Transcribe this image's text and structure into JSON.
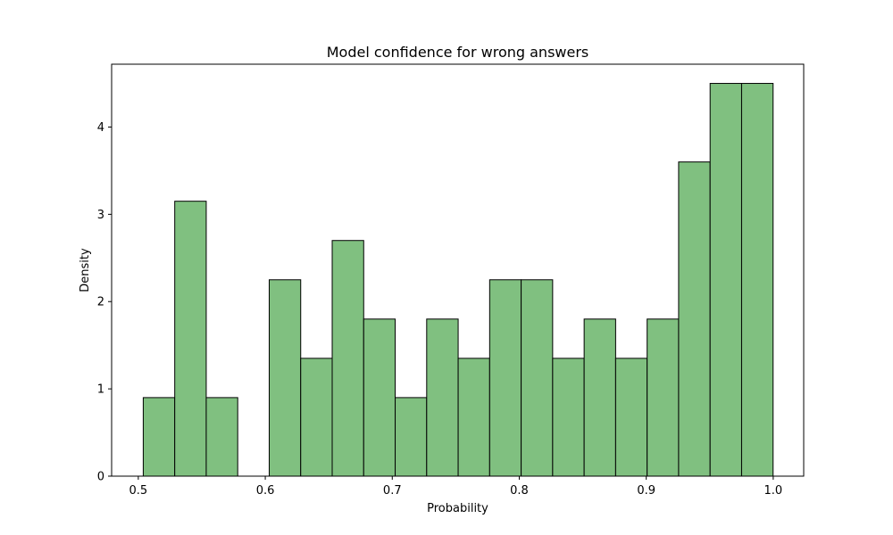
{
  "chart_data": {
    "type": "bar",
    "title": "Model confidence for wrong answers",
    "xlabel": "Probability",
    "ylabel": "Density",
    "xlim": [
      0.479,
      1.024
    ],
    "ylim": [
      0,
      4.72
    ],
    "x_ticks": [
      {
        "value": 0.5,
        "label": "0.5"
      },
      {
        "value": 0.6,
        "label": "0.6"
      },
      {
        "value": 0.7,
        "label": "0.7"
      },
      {
        "value": 0.8,
        "label": "0.8"
      },
      {
        "value": 0.9,
        "label": "0.9"
      },
      {
        "value": 1.0,
        "label": "1.0"
      }
    ],
    "y_ticks": [
      {
        "value": 0,
        "label": "0"
      },
      {
        "value": 1,
        "label": "1"
      },
      {
        "value": 2,
        "label": "2"
      },
      {
        "value": 3,
        "label": "3"
      },
      {
        "value": 4,
        "label": "4"
      }
    ],
    "bins": [
      {
        "start": 0.5039,
        "end": 0.5287,
        "value": 0.9
      },
      {
        "start": 0.5287,
        "end": 0.5535,
        "value": 3.15
      },
      {
        "start": 0.5535,
        "end": 0.5783,
        "value": 0.9
      },
      {
        "start": 0.5783,
        "end": 0.6031,
        "value": 0
      },
      {
        "start": 0.6031,
        "end": 0.6279,
        "value": 2.25
      },
      {
        "start": 0.6279,
        "end": 0.6527,
        "value": 1.35
      },
      {
        "start": 0.6527,
        "end": 0.6775,
        "value": 2.7
      },
      {
        "start": 0.6775,
        "end": 0.7023,
        "value": 1.8
      },
      {
        "start": 0.7023,
        "end": 0.7271,
        "value": 0.9
      },
      {
        "start": 0.7271,
        "end": 0.7519,
        "value": 1.8
      },
      {
        "start": 0.7519,
        "end": 0.7767,
        "value": 1.35
      },
      {
        "start": 0.7767,
        "end": 0.8015,
        "value": 2.25
      },
      {
        "start": 0.8015,
        "end": 0.8263,
        "value": 2.25
      },
      {
        "start": 0.8263,
        "end": 0.8511,
        "value": 1.35
      },
      {
        "start": 0.8511,
        "end": 0.8759,
        "value": 1.8
      },
      {
        "start": 0.8759,
        "end": 0.9007,
        "value": 1.35
      },
      {
        "start": 0.9007,
        "end": 0.9255,
        "value": 1.8
      },
      {
        "start": 0.9255,
        "end": 0.9503,
        "value": 3.6
      },
      {
        "start": 0.9503,
        "end": 0.9751,
        "value": 4.5
      },
      {
        "start": 0.9751,
        "end": 0.9999,
        "value": 4.5
      }
    ],
    "colors": {
      "bar_fill": "#80c080",
      "bar_edge": "#000000"
    },
    "grid": false,
    "legend": "none"
  }
}
